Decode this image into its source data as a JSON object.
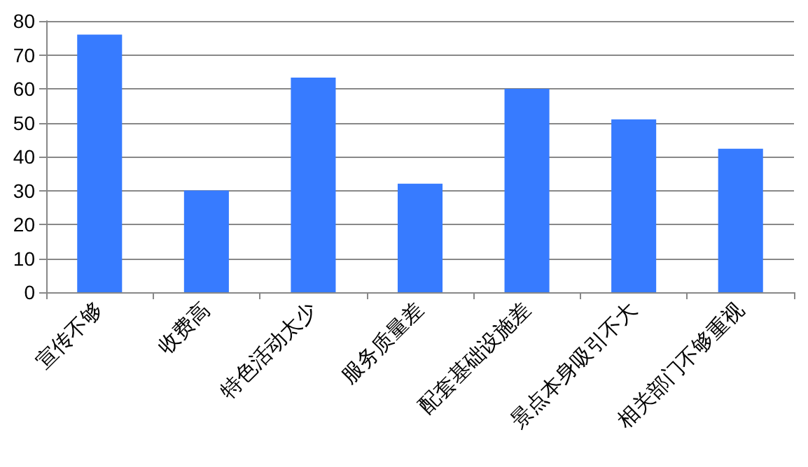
{
  "chart_data": {
    "type": "bar",
    "categories": [
      "宣传不够",
      "收费高",
      "特色活动太少",
      "服务质量差",
      "配套基础设施差",
      "景点本身吸引不大",
      "相关部门不够重视"
    ],
    "values": [
      76,
      30,
      63.3,
      32,
      60,
      51,
      42.3
    ],
    "color": "#377bff",
    "ylim": [
      0,
      80
    ],
    "yticks": [
      0,
      10,
      20,
      30,
      40,
      50,
      60,
      70,
      80
    ],
    "grid": "y"
  }
}
